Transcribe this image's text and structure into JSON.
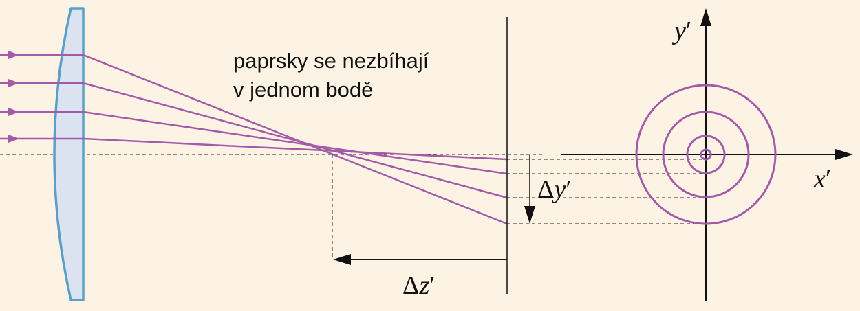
{
  "diagram": {
    "caption_lines": [
      "paprsky se nezbíhají",
      "v jednom bodě"
    ],
    "labels": {
      "delta_y": {
        "symbol": "Δ",
        "var": "y",
        "prime": "′"
      },
      "delta_z": {
        "symbol": "Δ",
        "var": "z",
        "prime": "′"
      },
      "axis_x": {
        "var": "x",
        "prime": "′"
      },
      "axis_y": {
        "var": "y",
        "prime": "′"
      }
    },
    "ray_count": 4,
    "ring_count": 4,
    "colors": {
      "background": "#fdf3e4",
      "ray": "#a35aa8",
      "lens_fill": "#dbe3f0",
      "lens_stroke": "#5b9fc9",
      "axis": "#111111"
    }
  }
}
